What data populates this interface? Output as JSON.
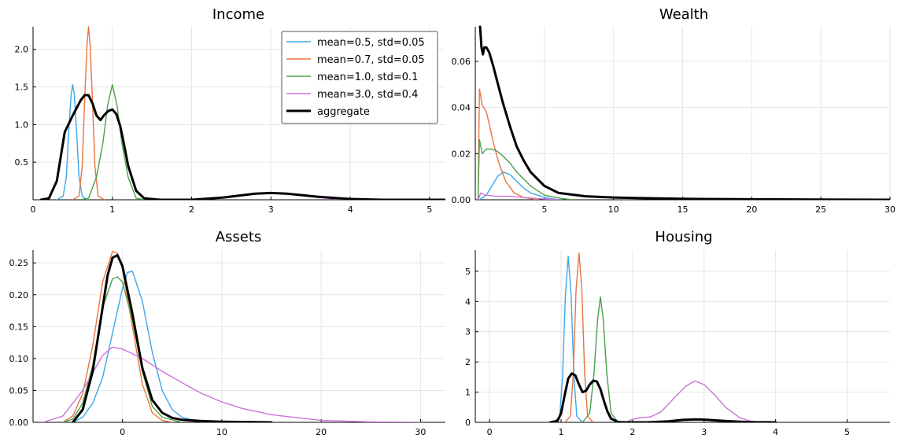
{
  "colors": {
    "s1": "#3ca7e9",
    "s2": "#e8743f",
    "s3": "#4aa04b",
    "s4": "#cb74d8",
    "aggregate": "#000000"
  },
  "legend": {
    "placement": "top-right of Income panel",
    "items": [
      {
        "label": "mean=0.5, std=0.05",
        "color": "#3ca7e9"
      },
      {
        "label": "mean=0.7, std=0.05",
        "color": "#e8743f"
      },
      {
        "label": "mean=1.0, std=0.1",
        "color": "#4aa04b"
      },
      {
        "label": "mean=3.0, std=0.4",
        "color": "#cb74d8"
      },
      {
        "label": "aggregate",
        "color": "#000000"
      }
    ]
  },
  "chart_data": [
    {
      "type": "line",
      "title": "Income",
      "xlabel": "",
      "ylabel": "",
      "xlim": [
        0,
        5.2
      ],
      "ylim": [
        0,
        2.3
      ],
      "xticks": [
        0,
        1,
        2,
        3,
        4,
        5
      ],
      "xtick_labels": [
        "0",
        "1",
        "2",
        "3",
        "4",
        "5"
      ],
      "yticks": [
        0.5,
        1.0,
        1.5,
        2.0
      ],
      "ytick_labels": [
        "0.5",
        "1.0",
        "1.5",
        "2.0"
      ],
      "grid": true,
      "series": [
        {
          "name": "mean=0.5, std=0.05",
          "color": "#3ca7e9",
          "width": 1.4,
          "x": [
            0.3,
            0.38,
            0.42,
            0.45,
            0.48,
            0.5,
            0.52,
            0.55,
            0.58,
            0.62,
            0.68
          ],
          "y": [
            0,
            0.05,
            0.3,
            0.9,
            1.4,
            1.53,
            1.4,
            0.9,
            0.3,
            0.05,
            0
          ]
        },
        {
          "name": "mean=0.7, std=0.05",
          "color": "#e8743f",
          "width": 1.4,
          "x": [
            0.5,
            0.58,
            0.62,
            0.65,
            0.68,
            0.7,
            0.72,
            0.75,
            0.78,
            0.82,
            0.9
          ],
          "y": [
            0,
            0.05,
            0.45,
            1.3,
            2.05,
            2.3,
            2.05,
            1.3,
            0.45,
            0.05,
            0
          ]
        },
        {
          "name": "mean=1.0, std=0.1",
          "color": "#4aa04b",
          "width": 1.4,
          "x": [
            0.6,
            0.7,
            0.8,
            0.88,
            0.94,
            1.0,
            1.06,
            1.12,
            1.2,
            1.3,
            1.4
          ],
          "y": [
            0,
            0.02,
            0.3,
            0.75,
            1.25,
            1.53,
            1.25,
            0.75,
            0.3,
            0.02,
            0
          ]
        },
        {
          "name": "mean=3.0, std=0.4",
          "color": "#cb74d8",
          "width": 1.4,
          "x": [
            1.8,
            2.2,
            2.5,
            2.8,
            3.0,
            3.2,
            3.5,
            3.8,
            4.2
          ],
          "y": [
            0,
            0.01,
            0.04,
            0.08,
            0.09,
            0.08,
            0.04,
            0.01,
            0
          ]
        },
        {
          "name": "aggregate",
          "color": "#000000",
          "width": 3,
          "x": [
            0.1,
            0.2,
            0.3,
            0.4,
            0.5,
            0.55,
            0.6,
            0.65,
            0.7,
            0.75,
            0.8,
            0.85,
            0.9,
            0.95,
            1.0,
            1.05,
            1.1,
            1.15,
            1.2,
            1.3,
            1.4,
            1.6,
            2.0,
            2.4,
            2.8,
            3.0,
            3.2,
            3.6,
            4.0,
            4.4,
            5.0,
            5.2
          ],
          "y": [
            0,
            0.02,
            0.25,
            0.9,
            1.12,
            1.22,
            1.32,
            1.39,
            1.39,
            1.28,
            1.12,
            1.06,
            1.13,
            1.18,
            1.2,
            1.14,
            0.98,
            0.72,
            0.45,
            0.12,
            0.02,
            0,
            0,
            0.03,
            0.08,
            0.09,
            0.08,
            0.04,
            0.01,
            0,
            0,
            0
          ]
        }
      ]
    },
    {
      "type": "line",
      "title": "Wealth",
      "xlabel": "",
      "ylabel": "",
      "xlim": [
        0,
        30
      ],
      "ylim": [
        0,
        0.075
      ],
      "xticks": [
        5,
        10,
        15,
        20,
        25,
        30
      ],
      "xtick_labels": [
        "5",
        "10",
        "15",
        "20",
        "25",
        "30"
      ],
      "yticks": [
        0,
        0.02,
        0.04,
        0.06
      ],
      "ytick_labels": [
        "0.00",
        "0.02",
        "0.04",
        "0.06"
      ],
      "grid": true,
      "series": [
        {
          "name": "mean=0.5, std=0.05",
          "color": "#3ca7e9",
          "width": 1.4,
          "x": [
            0.3,
            0.8,
            1.2,
            1.6,
            2.0,
            2.5,
            3.0,
            3.5,
            4.0,
            5.0,
            6.0
          ],
          "y": [
            0,
            0.002,
            0.006,
            0.01,
            0.012,
            0.011,
            0.008,
            0.005,
            0.003,
            0.001,
            0
          ]
        },
        {
          "name": "mean=0.7, std=0.05",
          "color": "#e8743f",
          "width": 1.4,
          "x": [
            0.2,
            0.3,
            0.5,
            0.8,
            1.0,
            1.3,
            1.7,
            2.2,
            2.8,
            3.5,
            4.5
          ],
          "y": [
            0,
            0.048,
            0.041,
            0.038,
            0.033,
            0.025,
            0.016,
            0.008,
            0.003,
            0.001,
            0
          ]
        },
        {
          "name": "mean=1.0, std=0.1",
          "color": "#4aa04b",
          "width": 1.4,
          "x": [
            0.2,
            0.3,
            0.5,
            0.8,
            1.2,
            1.6,
            2.0,
            2.5,
            3.0,
            3.5,
            4.0,
            5.0,
            6.0,
            7.0
          ],
          "y": [
            0,
            0.026,
            0.02,
            0.022,
            0.022,
            0.021,
            0.019,
            0.016,
            0.012,
            0.009,
            0.006,
            0.002,
            0.0008,
            0
          ]
        },
        {
          "name": "mean=3.0, std=0.4",
          "color": "#cb74d8",
          "width": 1.4,
          "x": [
            0.2,
            0.4,
            0.7,
            1.5,
            2.5,
            3.5,
            4.5,
            6.0
          ],
          "y": [
            0,
            0.003,
            0.002,
            0.0015,
            0.0015,
            0.001,
            0.0005,
            0
          ]
        },
        {
          "name": "aggregate",
          "color": "#000000",
          "width": 3,
          "x": [
            0.35,
            0.45,
            0.55,
            0.65,
            0.8,
            1.0,
            1.3,
            1.6,
            2.0,
            2.5,
            3.0,
            3.5,
            4.0,
            5.0,
            6.0,
            8.0,
            10.0,
            12.0,
            15.0,
            20.0,
            25.0,
            30.0
          ],
          "y": [
            0.075,
            0.066,
            0.063,
            0.066,
            0.066,
            0.064,
            0.058,
            0.051,
            0.042,
            0.032,
            0.023,
            0.017,
            0.012,
            0.006,
            0.003,
            0.0015,
            0.001,
            0.0007,
            0.0004,
            0.0002,
            0.0001,
            0
          ]
        }
      ]
    },
    {
      "type": "line",
      "title": "Assets",
      "xlabel": "",
      "ylabel": "",
      "xlim": [
        -9,
        32.5
      ],
      "ylim": [
        0,
        0.27
      ],
      "xticks": [
        0,
        10,
        20,
        30
      ],
      "xtick_labels": [
        "0",
        "10",
        "20",
        "30"
      ],
      "yticks": [
        0,
        0.05,
        0.1,
        0.15,
        0.2,
        0.25
      ],
      "ytick_labels": [
        "0.00",
        "0.05",
        "0.10",
        "0.15",
        "0.20",
        "0.25"
      ],
      "grid": true,
      "series": [
        {
          "name": "mean=0.5, std=0.05",
          "color": "#3ca7e9",
          "width": 1.4,
          "x": [
            -5,
            -4,
            -3,
            -2,
            -1,
            0,
            0.5,
            1,
            2,
            3,
            4,
            5,
            6,
            8
          ],
          "y": [
            0,
            0.008,
            0.03,
            0.07,
            0.14,
            0.21,
            0.235,
            0.237,
            0.19,
            0.11,
            0.05,
            0.02,
            0.008,
            0
          ]
        },
        {
          "name": "mean=0.7, std=0.05",
          "color": "#e8743f",
          "width": 1.4,
          "x": [
            -6,
            -5,
            -4,
            -3,
            -2,
            -1,
            -0.5,
            0,
            1,
            2,
            3,
            4,
            5
          ],
          "y": [
            0,
            0.01,
            0.045,
            0.12,
            0.22,
            0.268,
            0.265,
            0.24,
            0.15,
            0.06,
            0.015,
            0.003,
            0
          ]
        },
        {
          "name": "mean=1.0, std=0.1",
          "color": "#4aa04b",
          "width": 1.4,
          "x": [
            -6,
            -5,
            -4,
            -3,
            -2,
            -1,
            -0.5,
            0,
            1,
            2,
            3,
            4,
            6
          ],
          "y": [
            0,
            0.005,
            0.03,
            0.09,
            0.18,
            0.225,
            0.228,
            0.22,
            0.16,
            0.08,
            0.025,
            0.008,
            0
          ]
        },
        {
          "name": "mean=3.0, std=0.4",
          "color": "#cb74d8",
          "width": 1.4,
          "x": [
            -8,
            -6,
            -4,
            -2,
            -1,
            0,
            2,
            4,
            6,
            8,
            10,
            12,
            15,
            20,
            25,
            30
          ],
          "y": [
            0,
            0.01,
            0.05,
            0.105,
            0.118,
            0.115,
            0.1,
            0.08,
            0.062,
            0.045,
            0.032,
            0.022,
            0.012,
            0.003,
            0.0008,
            0
          ]
        },
        {
          "name": "aggregate",
          "color": "#000000",
          "width": 3,
          "x": [
            -5,
            -4,
            -3,
            -2,
            -1.5,
            -1,
            -0.5,
            0,
            1,
            2,
            3,
            4,
            5,
            6,
            8,
            10,
            15
          ],
          "y": [
            0,
            0.02,
            0.08,
            0.18,
            0.23,
            0.258,
            0.262,
            0.245,
            0.17,
            0.085,
            0.035,
            0.015,
            0.007,
            0.004,
            0.002,
            0.001,
            0
          ]
        }
      ]
    },
    {
      "type": "line",
      "title": "Housing",
      "xlabel": "",
      "ylabel": "",
      "xlim": [
        -0.2,
        5.6
      ],
      "ylim": [
        0,
        5.7
      ],
      "xticks": [
        0,
        1,
        2,
        3,
        4,
        5
      ],
      "xtick_labels": [
        "0",
        "1",
        "2",
        "3",
        "4",
        "5"
      ],
      "yticks": [
        0,
        1,
        2,
        3,
        4,
        5
      ],
      "ytick_labels": [
        "0",
        "1",
        "2",
        "3",
        "4",
        "5"
      ],
      "grid": true,
      "series": [
        {
          "name": "mean=0.5, std=0.05",
          "color": "#3ca7e9",
          "width": 1.4,
          "x": [
            0.9,
            0.98,
            1.02,
            1.06,
            1.1,
            1.14,
            1.18,
            1.22,
            1.3
          ],
          "y": [
            0,
            0.2,
            1.5,
            4.2,
            5.5,
            4.2,
            1.5,
            0.2,
            0
          ]
        },
        {
          "name": "mean=0.7, std=0.05",
          "color": "#e8743f",
          "width": 1.4,
          "x": [
            1.05,
            1.13,
            1.17,
            1.21,
            1.25,
            1.29,
            1.33,
            1.37,
            1.45
          ],
          "y": [
            0,
            0.2,
            1.6,
            4.4,
            5.6,
            4.4,
            1.6,
            0.2,
            0
          ]
        },
        {
          "name": "mean=1.0, std=0.1",
          "color": "#4aa04b",
          "width": 1.4,
          "x": [
            1.3,
            1.4,
            1.46,
            1.51,
            1.55,
            1.59,
            1.64,
            1.7,
            1.8
          ],
          "y": [
            0,
            0.3,
            1.6,
            3.4,
            4.15,
            3.4,
            1.6,
            0.3,
            0
          ]
        },
        {
          "name": "mean=3.0, std=0.4",
          "color": "#cb74d8",
          "width": 1.4,
          "x": [
            1.9,
            2.0,
            2.1,
            2.25,
            2.4,
            2.6,
            2.75,
            2.87,
            3.0,
            3.15,
            3.3,
            3.5,
            3.7
          ],
          "y": [
            0,
            0.1,
            0.15,
            0.18,
            0.35,
            0.85,
            1.2,
            1.37,
            1.25,
            0.9,
            0.5,
            0.15,
            0
          ]
        },
        {
          "name": "aggregate",
          "color": "#000000",
          "width": 3,
          "x": [
            0.85,
            0.95,
            1.0,
            1.05,
            1.1,
            1.15,
            1.2,
            1.25,
            1.3,
            1.35,
            1.4,
            1.45,
            1.5,
            1.55,
            1.6,
            1.65,
            1.7,
            1.8,
            1.9,
            2.2,
            2.5,
            2.7,
            2.87,
            3.0,
            3.2,
            3.5,
            3.7,
            4.0
          ],
          "y": [
            0,
            0.05,
            0.3,
            0.9,
            1.45,
            1.62,
            1.55,
            1.25,
            1.0,
            1.05,
            1.25,
            1.38,
            1.35,
            1.1,
            0.7,
            0.35,
            0.12,
            0.01,
            0,
            0,
            0.03,
            0.08,
            0.1,
            0.09,
            0.06,
            0.02,
            0.005,
            0
          ]
        }
      ]
    }
  ]
}
